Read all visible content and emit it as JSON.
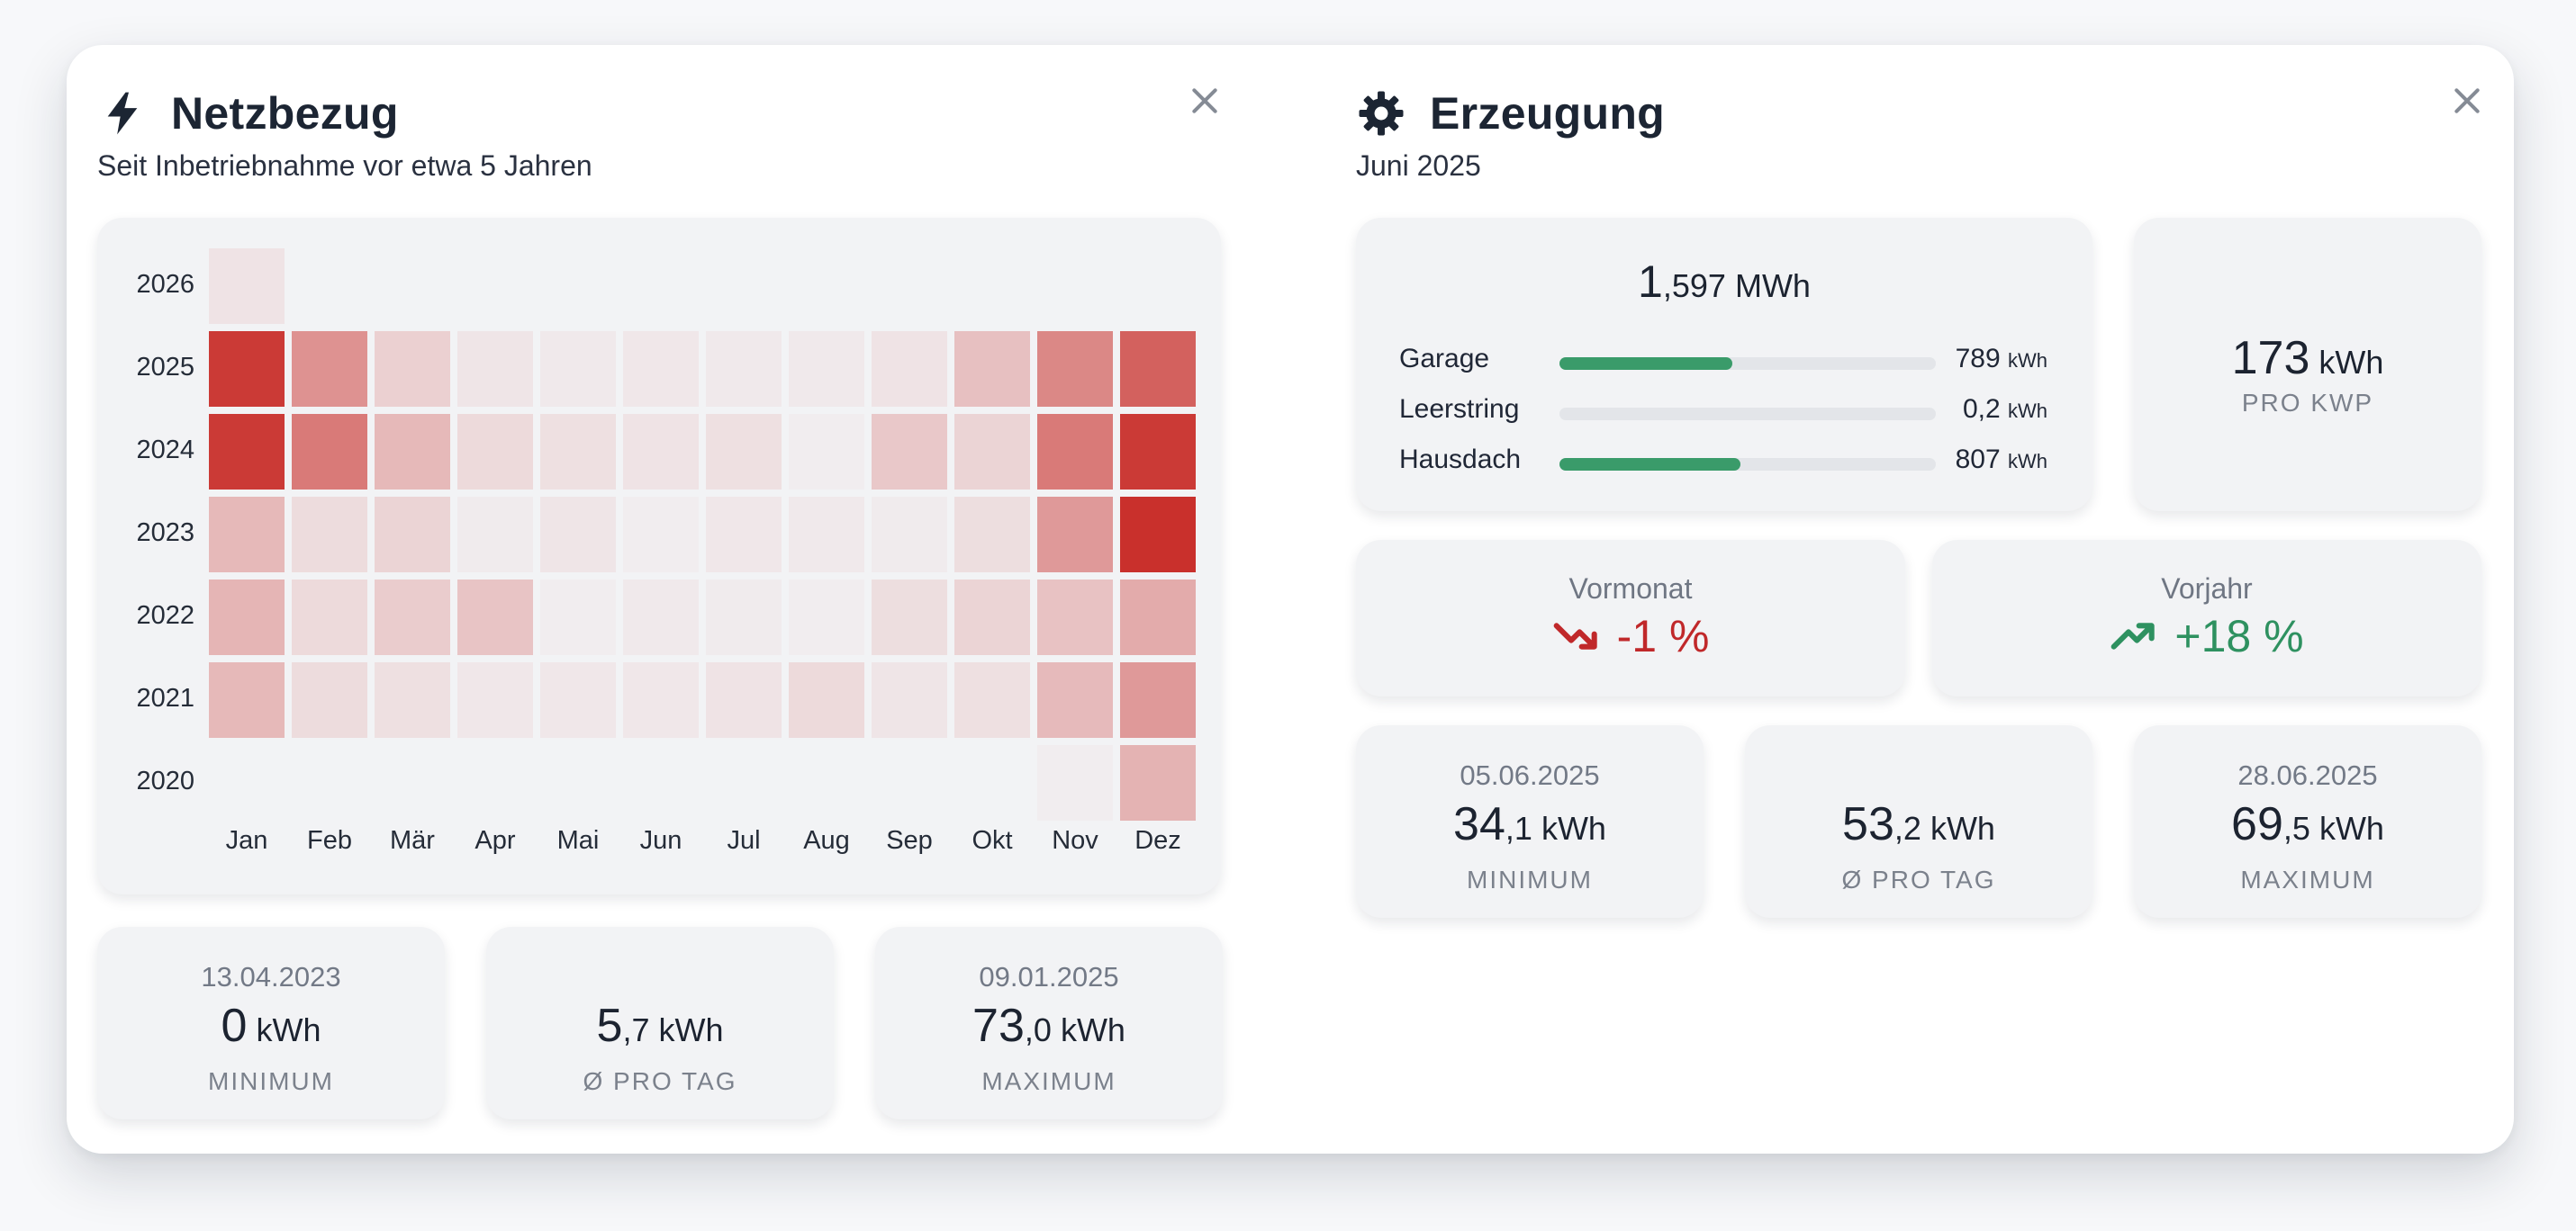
{
  "grid_panel": {
    "title": "Netzbezug",
    "icon": "bolt-icon",
    "subtitle": "Seit Inbetriebnahme vor etwa 5 Jahren",
    "heatmap": {
      "years": [
        "2026",
        "2025",
        "2024",
        "2023",
        "2022",
        "2021",
        "2020"
      ],
      "months": [
        "Jan",
        "Feb",
        "Mär",
        "Apr",
        "Mai",
        "Jun",
        "Jul",
        "Aug",
        "Sep",
        "Okt",
        "Nov",
        "Dez"
      ],
      "base_color": "#c9302c",
      "intensity": [
        [
          0.08,
          null,
          null,
          null,
          null,
          null,
          null,
          null,
          null,
          null,
          null,
          null
        ],
        [
          0.95,
          0.5,
          0.18,
          0.07,
          0.05,
          0.06,
          0.05,
          0.05,
          0.08,
          0.26,
          0.55,
          0.75
        ],
        [
          0.95,
          0.62,
          0.3,
          0.13,
          0.1,
          0.08,
          0.1,
          0.03,
          0.22,
          0.16,
          0.62,
          0.95
        ],
        [
          0.3,
          0.12,
          0.16,
          0.04,
          0.07,
          0.03,
          0.06,
          0.05,
          0.04,
          0.11,
          0.46,
          1.0
        ],
        [
          0.32,
          0.13,
          0.2,
          0.24,
          0.03,
          0.05,
          0.04,
          0.03,
          0.11,
          0.16,
          0.25,
          0.37
        ],
        [
          0.3,
          0.12,
          0.1,
          0.06,
          0.06,
          0.06,
          0.08,
          0.13,
          0.07,
          0.1,
          0.29,
          0.46
        ],
        [
          null,
          null,
          null,
          null,
          null,
          null,
          null,
          null,
          null,
          null,
          0.03,
          0.33
        ]
      ]
    },
    "stats": [
      {
        "date": "13.04.2023",
        "int": "0",
        "dec": "",
        "unit": "kWh",
        "caption": "MINIMUM"
      },
      {
        "date": "",
        "int": "5",
        "dec": ",7",
        "unit": "kWh",
        "caption": "Ø PRO TAG"
      },
      {
        "date": "09.01.2025",
        "int": "73",
        "dec": ",0",
        "unit": "kWh",
        "caption": "MAXIMUM"
      }
    ]
  },
  "production_panel": {
    "title": "Erzeugung",
    "icon": "gear-icon",
    "subtitle": "Juni 2025",
    "total": {
      "int": "1",
      "dec": ",597",
      "unit": "MWh"
    },
    "strings": [
      {
        "name": "Garage",
        "value_int": "789",
        "value_dec": "",
        "unit": "kWh",
        "fraction": 0.46
      },
      {
        "name": "Leerstring",
        "value_int": "0",
        "value_dec": ",2",
        "unit": "kWh",
        "fraction": 0.0
      },
      {
        "name": "Hausdach",
        "value_int": "807",
        "value_dec": "",
        "unit": "kWh",
        "fraction": 0.48
      }
    ],
    "per_kwp": {
      "int": "173",
      "unit": "kWh",
      "caption": "PRO KWP"
    },
    "comparisons": [
      {
        "label": "Vormonat",
        "value": "-1 %",
        "trend": "down",
        "color": "#c0282a",
        "icon": "trending-down-icon"
      },
      {
        "label": "Vorjahr",
        "value": "+18 %",
        "trend": "up",
        "color": "#2e9160",
        "icon": "trending-up-icon"
      }
    ],
    "stats": [
      {
        "date": "05.06.2025",
        "int": "34",
        "dec": ",1",
        "unit": "kWh",
        "caption": "MINIMUM"
      },
      {
        "date": "",
        "int": "53",
        "dec": ",2",
        "unit": "kWh",
        "caption": "Ø PRO TAG"
      },
      {
        "date": "28.06.2025",
        "int": "69",
        "dec": ",5",
        "unit": "kWh",
        "caption": "MAXIMUM"
      }
    ]
  }
}
